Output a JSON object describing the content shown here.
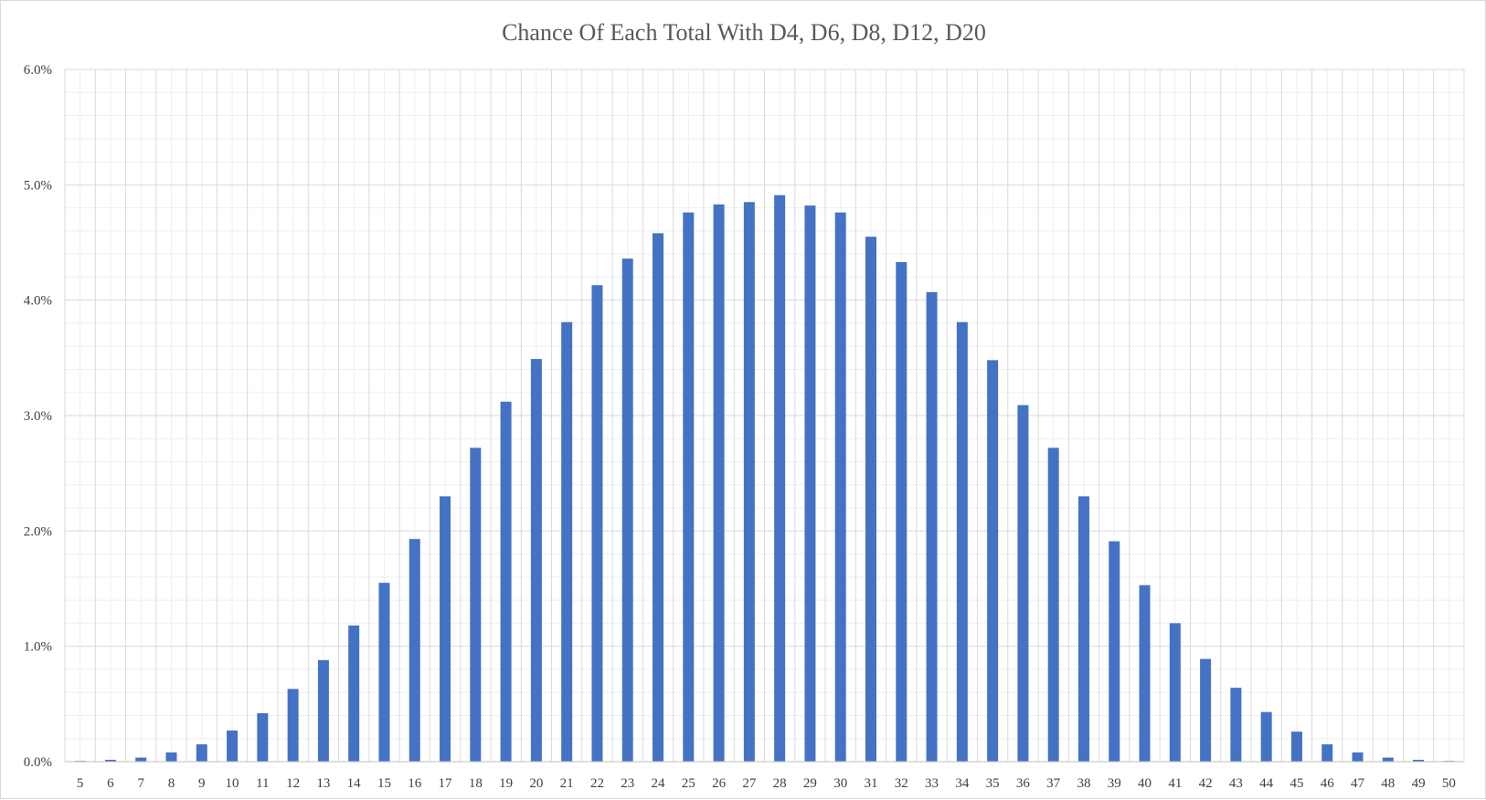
{
  "chart_data": {
    "type": "bar",
    "title": "Chance Of Each Total With D4, D6, D8, D12, D20",
    "xlabel": "",
    "ylabel": "",
    "ylim": [
      0,
      6
    ],
    "y_unit": "%",
    "y_ticks": [
      "0.0%",
      "1.0%",
      "2.0%",
      "3.0%",
      "4.0%",
      "5.0%",
      "6.0%"
    ],
    "grid": true,
    "legend": "none",
    "bar_color": "#4472c4",
    "categories": [
      "5",
      "6",
      "7",
      "8",
      "9",
      "10",
      "11",
      "12",
      "13",
      "14",
      "15",
      "16",
      "17",
      "18",
      "19",
      "20",
      "21",
      "22",
      "23",
      "24",
      "25",
      "26",
      "27",
      "28",
      "29",
      "30",
      "31",
      "32",
      "33",
      "34",
      "35",
      "36",
      "37",
      "38",
      "39",
      "40",
      "41",
      "42",
      "43",
      "44",
      "45",
      "46",
      "47",
      "48",
      "49",
      "50"
    ],
    "values": [
      0.003,
      0.016,
      0.035,
      0.08,
      0.15,
      0.27,
      0.42,
      0.63,
      0.88,
      1.18,
      1.55,
      1.93,
      2.3,
      2.72,
      3.12,
      3.49,
      3.81,
      4.13,
      4.36,
      4.58,
      4.76,
      4.83,
      4.85,
      4.91,
      4.82,
      4.76,
      4.55,
      4.33,
      4.07,
      3.81,
      3.48,
      3.09,
      2.72,
      2.3,
      1.91,
      1.53,
      1.2,
      0.89,
      0.64,
      0.43,
      0.26,
      0.15,
      0.08,
      0.035,
      0.016,
      0.003
    ]
  }
}
